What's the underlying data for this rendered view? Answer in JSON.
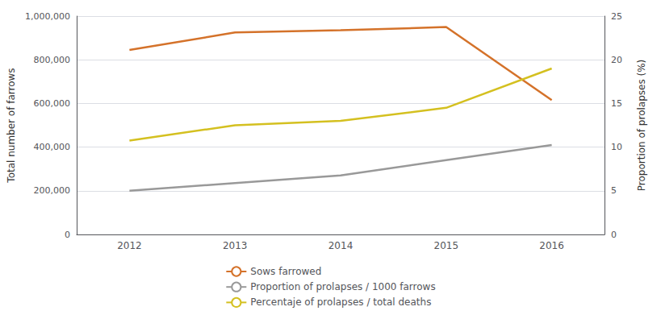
{
  "chart_data": {
    "type": "line",
    "categories": [
      "2012",
      "2013",
      "2014",
      "2015",
      "2016"
    ],
    "series": [
      {
        "name": "Sows farrowed",
        "color": "#d4722a",
        "values": [
          845000,
          925000,
          935000,
          950000,
          615000
        ]
      },
      {
        "name": "Proportion of prolapses / 1000 farrows",
        "color": "#999999",
        "values": [
          200000,
          235000,
          270000,
          340000,
          410000
        ]
      },
      {
        "name": "Percentaje of prolapses / total deaths",
        "color": "#d4c020",
        "values": [
          430000,
          500000,
          520000,
          580000,
          760000
        ]
      }
    ],
    "ylabel": "Total number of farrows",
    "ylim": [
      0,
      1000000
    ],
    "yticks": [
      0,
      {
        "value": 200000,
        "label": "200,000"
      },
      {
        "value": 400000,
        "label": "400,000"
      },
      {
        "value": 600000,
        "label": "600,000"
      },
      {
        "value": 800000,
        "label": "800,000"
      },
      {
        "value": 1000000,
        "label": "1,000,000"
      }
    ],
    "y2label": "Proportion of prolapses (%)",
    "y2lim": [
      0,
      25
    ],
    "y2ticks": [
      0,
      5,
      10,
      15,
      20,
      25
    ],
    "grid": true,
    "legend": "bottom"
  }
}
